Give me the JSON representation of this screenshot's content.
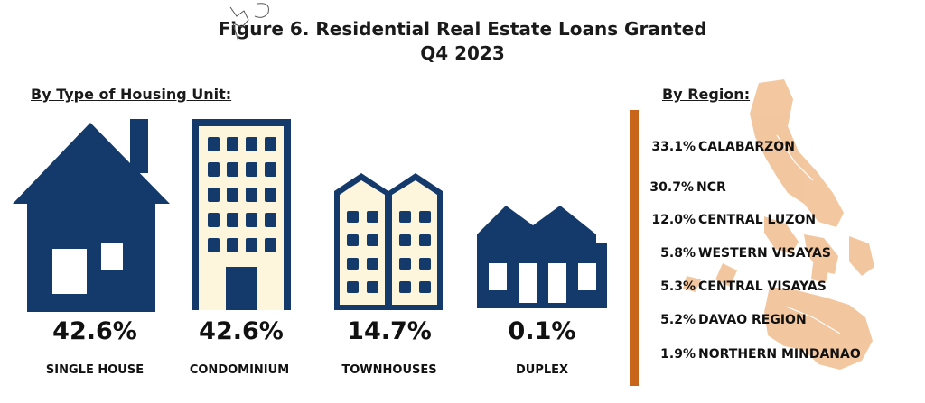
{
  "title_line1": "Figure 6. Residential Real Estate Loans Granted",
  "title_line2": "Q4 2023",
  "housing_heading": "By Type of Housing Unit:",
  "region_heading": "By Region:",
  "colors": {
    "navy": "#143a6b",
    "cream": "#fdf6dc",
    "map": "#f2c49a",
    "bar": "#c8651b"
  },
  "chart_data": [
    {
      "type": "bar",
      "title": "By Type of Housing Unit:",
      "categories": [
        "SINGLE HOUSE",
        "CONDOMINIUM",
        "TOWNHOUSES",
        "DUPLEX"
      ],
      "display": [
        "42.6%",
        "42.6%",
        "14.7%",
        "0.1%"
      ],
      "values": [
        42.6,
        42.6,
        14.7,
        0.1
      ],
      "icons": [
        "house-icon",
        "condominium-icon",
        "townhouse-icon",
        "duplex-icon"
      ]
    },
    {
      "type": "table",
      "title": "By Region:",
      "categories": [
        "CALABARZON",
        "NCR",
        "CENTRAL LUZON",
        "WESTERN VISAYAS",
        "CENTRAL VISAYAS",
        "DAVAO REGION",
        "NORTHERN MINDANAO"
      ],
      "display": [
        "33.1%",
        "30.7%",
        "12.0%",
        "5.8%",
        "5.3%",
        "5.2%",
        "1.9%"
      ],
      "values": [
        33.1,
        30.7,
        12.0,
        5.8,
        5.3,
        5.2,
        1.9
      ]
    }
  ]
}
